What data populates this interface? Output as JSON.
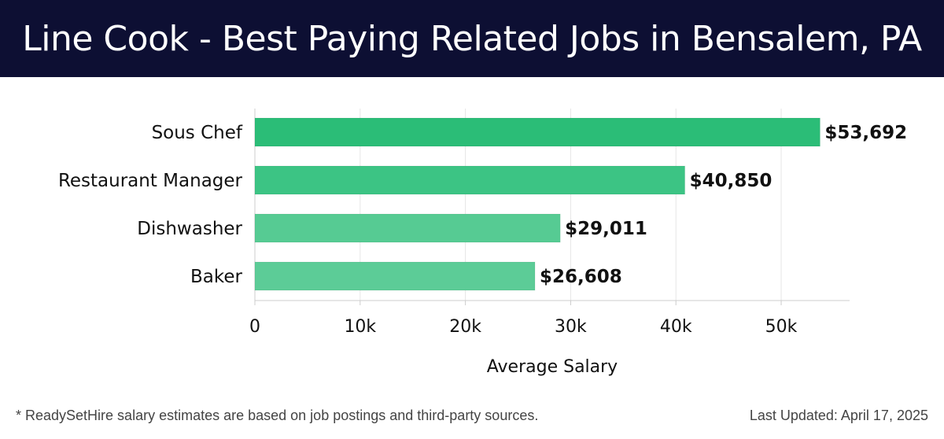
{
  "header": {
    "title": "Line Cook - Best Paying Related Jobs in Bensalem, PA"
  },
  "chart_data": {
    "type": "bar",
    "orientation": "horizontal",
    "categories": [
      "Sous Chef",
      "Restaurant Manager",
      "Dishwasher",
      "Baker"
    ],
    "values": [
      53692,
      40850,
      29011,
      26608
    ],
    "value_labels": [
      "$53,692",
      "$40,850",
      "$29,011",
      "$26,608"
    ],
    "bar_colors": [
      "#2bbd77",
      "#3cc484",
      "#56cb93",
      "#5ccc97"
    ],
    "title": "Line Cook - Best Paying Related Jobs in Bensalem, PA",
    "xlabel": "Average Salary",
    "ylabel": "",
    "xlim": [
      0,
      56500
    ],
    "xticks": [
      0,
      10000,
      20000,
      30000,
      40000,
      50000
    ],
    "xtick_labels": [
      "0",
      "10k",
      "20k",
      "30k",
      "40k",
      "50k"
    ],
    "grid": "vertical",
    "legend": "none"
  },
  "footer": {
    "note": "* ReadySetHire salary estimates are based on job postings and third-party sources.",
    "updated": "Last Updated: April 17, 2025"
  }
}
